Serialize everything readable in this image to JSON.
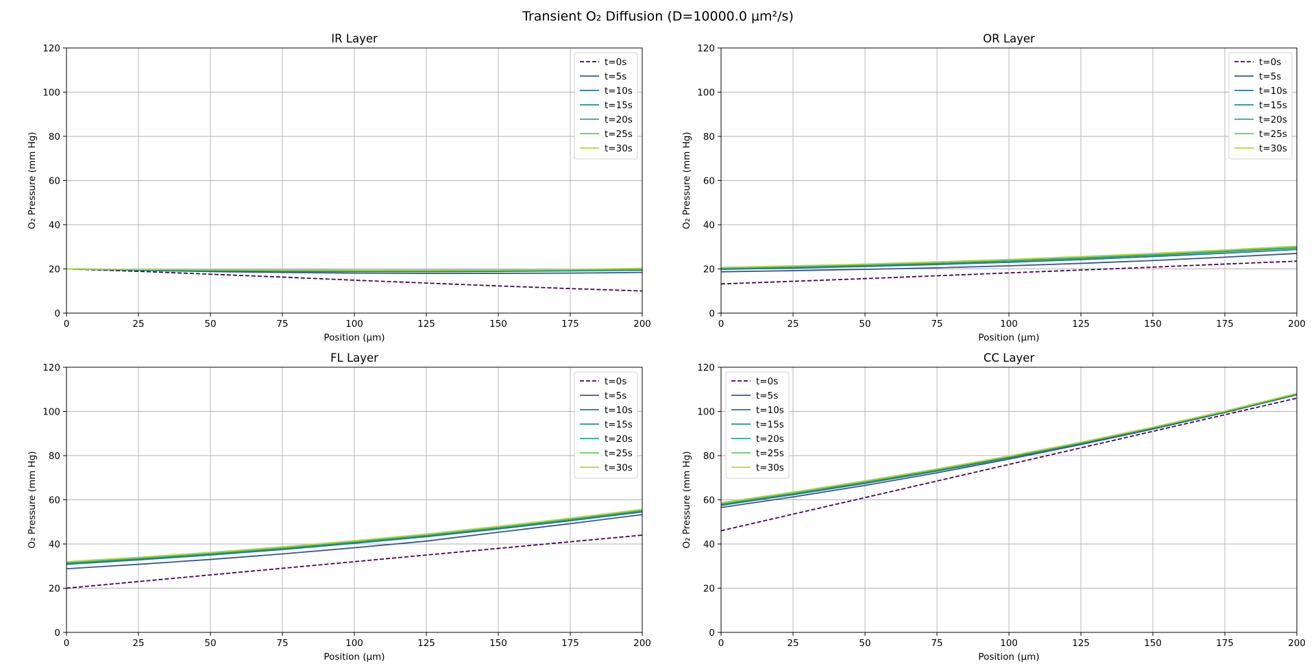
{
  "figure": {
    "title": "Transient O₂ Diffusion (D=10000.0 µm²/s)"
  },
  "chart_data": [
    {
      "type": "line",
      "title": "IR Layer",
      "xlabel": "Position (µm)",
      "ylabel": "O₂ Pressure (mm Hg)",
      "xlim": [
        0,
        200
      ],
      "ylim": [
        0,
        120
      ],
      "xticks": [
        0,
        25,
        50,
        75,
        100,
        125,
        150,
        175,
        200
      ],
      "yticks": [
        0,
        20,
        40,
        60,
        80,
        100,
        120
      ],
      "grid": true,
      "legend_position": "top-right",
      "x": [
        0,
        25,
        50,
        75,
        100,
        125,
        150,
        175,
        200
      ],
      "series": [
        {
          "name": "t=0s",
          "color": "#440154",
          "dashed": true,
          "values": [
            20,
            18.9,
            17.6,
            16.3,
            14.9,
            13.6,
            12.3,
            11.1,
            10
          ]
        },
        {
          "name": "t=5s",
          "color": "#3b528b",
          "dashed": false,
          "values": [
            20,
            19.4,
            18.8,
            18.4,
            18.1,
            18.0,
            18.0,
            18.1,
            18.4
          ]
        },
        {
          "name": "t=10s",
          "color": "#2c728e",
          "dashed": false,
          "values": [
            20,
            19.5,
            19.1,
            18.9,
            18.8,
            18.8,
            18.9,
            19.1,
            19.4
          ]
        },
        {
          "name": "t=15s",
          "color": "#21918c",
          "dashed": false,
          "values": [
            20,
            19.6,
            19.3,
            19.1,
            19.0,
            19.0,
            19.1,
            19.3,
            19.7
          ]
        },
        {
          "name": "t=20s",
          "color": "#27ad81",
          "dashed": false,
          "values": [
            20,
            19.7,
            19.5,
            19.3,
            19.2,
            19.2,
            19.3,
            19.5,
            19.9
          ]
        },
        {
          "name": "t=25s",
          "color": "#5ec962",
          "dashed": false,
          "values": [
            20,
            19.8,
            19.6,
            19.4,
            19.4,
            19.4,
            19.5,
            19.7,
            20.1
          ]
        },
        {
          "name": "t=30s",
          "color": "#addc30",
          "dashed": false,
          "values": [
            20,
            19.8,
            19.7,
            19.6,
            19.5,
            19.5,
            19.6,
            19.8,
            20.3
          ]
        }
      ]
    },
    {
      "type": "line",
      "title": "OR Layer",
      "xlabel": "Position (µm)",
      "ylabel": "O₂ Pressure (mm Hg)",
      "xlim": [
        0,
        200
      ],
      "ylim": [
        0,
        120
      ],
      "xticks": [
        0,
        25,
        50,
        75,
        100,
        125,
        150,
        175,
        200
      ],
      "yticks": [
        0,
        20,
        40,
        60,
        80,
        100,
        120
      ],
      "grid": true,
      "legend_position": "top-right",
      "x": [
        0,
        25,
        50,
        75,
        100,
        125,
        150,
        175,
        200
      ],
      "series": [
        {
          "name": "t=0s",
          "color": "#440154",
          "dashed": true,
          "values": [
            13.2,
            14.4,
            15.6,
            16.9,
            18.2,
            19.5,
            20.8,
            22.2,
            23.5
          ]
        },
        {
          "name": "t=5s",
          "color": "#3b528b",
          "dashed": false,
          "values": [
            18.7,
            19.2,
            19.8,
            20.5,
            21.4,
            22.5,
            23.8,
            25.3,
            27.0
          ]
        },
        {
          "name": "t=10s",
          "color": "#2c728e",
          "dashed": false,
          "values": [
            19.8,
            20.4,
            21.1,
            22.0,
            23.0,
            24.2,
            25.6,
            27.1,
            28.8
          ]
        },
        {
          "name": "t=15s",
          "color": "#21918c",
          "dashed": false,
          "values": [
            20.2,
            20.8,
            21.6,
            22.5,
            23.6,
            24.8,
            26.2,
            27.8,
            29.5
          ]
        },
        {
          "name": "t=20s",
          "color": "#27ad81",
          "dashed": false,
          "values": [
            20.4,
            21.1,
            21.9,
            22.8,
            23.9,
            25.1,
            26.5,
            28.1,
            29.8
          ]
        },
        {
          "name": "t=25s",
          "color": "#5ec962",
          "dashed": false,
          "values": [
            20.6,
            21.3,
            22.1,
            23.0,
            24.1,
            25.4,
            26.8,
            28.4,
            30.1
          ]
        },
        {
          "name": "t=30s",
          "color": "#addc30",
          "dashed": false,
          "values": [
            20.7,
            21.4,
            22.2,
            23.2,
            24.3,
            25.6,
            27.0,
            28.6,
            30.3
          ]
        }
      ]
    },
    {
      "type": "line",
      "title": "FL Layer",
      "xlabel": "Position (µm)",
      "ylabel": "O₂ Pressure (mm Hg)",
      "xlim": [
        0,
        200
      ],
      "ylim": [
        0,
        120
      ],
      "xticks": [
        0,
        25,
        50,
        75,
        100,
        125,
        150,
        175,
        200
      ],
      "yticks": [
        0,
        20,
        40,
        60,
        80,
        100,
        120
      ],
      "grid": true,
      "legend_position": "top-right",
      "x": [
        0,
        25,
        50,
        75,
        100,
        125,
        150,
        175,
        200
      ],
      "series": [
        {
          "name": "t=0s",
          "color": "#440154",
          "dashed": true,
          "values": [
            20,
            23,
            26,
            29,
            32,
            35,
            38,
            41,
            44
          ]
        },
        {
          "name": "t=5s",
          "color": "#3b528b",
          "dashed": false,
          "values": [
            28.8,
            30.8,
            33.0,
            35.5,
            38.3,
            41.3,
            45.3,
            49.2,
            53.3
          ]
        },
        {
          "name": "t=10s",
          "color": "#2c728e",
          "dashed": false,
          "values": [
            30.8,
            32.8,
            35.0,
            37.5,
            40.3,
            43.3,
            46.8,
            50.5,
            54.5
          ]
        },
        {
          "name": "t=15s",
          "color": "#21918c",
          "dashed": false,
          "values": [
            31.3,
            33.3,
            35.5,
            38.0,
            40.8,
            43.8,
            47.3,
            51.0,
            55.0
          ]
        },
        {
          "name": "t=20s",
          "color": "#27ad81",
          "dashed": false,
          "values": [
            31.6,
            33.6,
            35.8,
            38.3,
            41.1,
            44.1,
            47.6,
            51.3,
            55.3
          ]
        },
        {
          "name": "t=25s",
          "color": "#5ec962",
          "dashed": false,
          "values": [
            31.8,
            33.8,
            36.0,
            38.5,
            41.3,
            44.3,
            47.8,
            51.5,
            55.5
          ]
        },
        {
          "name": "t=30s",
          "color": "#addc30",
          "dashed": false,
          "values": [
            32.0,
            34.0,
            36.2,
            38.7,
            41.5,
            44.5,
            48.0,
            51.7,
            55.7
          ]
        }
      ]
    },
    {
      "type": "line",
      "title": "CC Layer",
      "xlabel": "Position (µm)",
      "ylabel": "O₂ Pressure (mm Hg)",
      "xlim": [
        0,
        200
      ],
      "ylim": [
        0,
        120
      ],
      "xticks": [
        0,
        25,
        50,
        75,
        100,
        125,
        150,
        175,
        200
      ],
      "yticks": [
        0,
        20,
        40,
        60,
        80,
        100,
        120
      ],
      "grid": true,
      "legend_position": "top-left",
      "x": [
        0,
        25,
        50,
        75,
        100,
        125,
        150,
        175,
        200
      ],
      "series": [
        {
          "name": "t=0s",
          "color": "#440154",
          "dashed": true,
          "values": [
            46,
            53.5,
            61,
            68.5,
            76,
            83.5,
            91,
            98.5,
            106
          ]
        },
        {
          "name": "t=5s",
          "color": "#3b528b",
          "dashed": false,
          "values": [
            56.5,
            61.3,
            66.5,
            72.2,
            78.4,
            85.0,
            92.0,
            99.5,
            107.5
          ]
        },
        {
          "name": "t=10s",
          "color": "#2c728e",
          "dashed": false,
          "values": [
            57.5,
            62.3,
            67.4,
            73.0,
            79.0,
            85.5,
            92.4,
            99.8,
            107.8
          ]
        },
        {
          "name": "t=15s",
          "color": "#21918c",
          "dashed": false,
          "values": [
            58.0,
            62.8,
            67.9,
            73.4,
            79.3,
            85.7,
            92.6,
            99.9,
            107.9
          ]
        },
        {
          "name": "t=20s",
          "color": "#27ad81",
          "dashed": false,
          "values": [
            58.3,
            63.1,
            68.2,
            73.7,
            79.5,
            85.9,
            92.7,
            100.0,
            108.0
          ]
        },
        {
          "name": "t=25s",
          "color": "#5ec962",
          "dashed": false,
          "values": [
            58.5,
            63.3,
            68.4,
            73.9,
            79.7,
            86.0,
            92.8,
            100.1,
            108.1
          ]
        },
        {
          "name": "t=30s",
          "color": "#addc30",
          "dashed": false,
          "values": [
            58.7,
            63.5,
            68.6,
            74.0,
            79.8,
            86.1,
            92.9,
            100.2,
            108.2
          ]
        }
      ]
    }
  ]
}
